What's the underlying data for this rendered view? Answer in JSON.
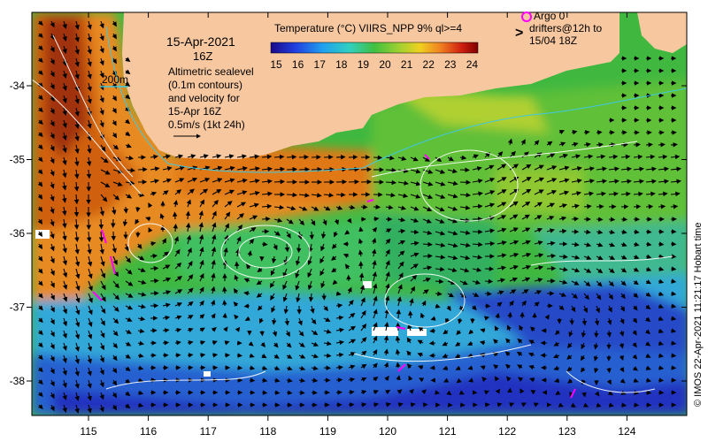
{
  "title": {
    "date": "15-Apr-2021",
    "time": "16Z",
    "description_lines": [
      "Altimetric sealevel",
      "(0.1m contours)",
      "and velocity for",
      "15-Apr 16Z"
    ],
    "velocity_scale": "0.5m/s (1kt 24h)"
  },
  "isobath_label": "200m",
  "colorbar": {
    "title": "Temperature (°C) VIIRS_NPP 9% ql>=4",
    "ticks": [
      "15",
      "16",
      "17",
      "18",
      "19",
      "20",
      "21",
      "22",
      "23",
      "24"
    ],
    "range": [
      14.5,
      24.5
    ]
  },
  "legend": {
    "argo_label": "Argo 0",
    "drifters_label_1": "drifters@12h to",
    "drifters_label_2": "15/04 18Z",
    "argo_color": "#ff00ff",
    "drifter_color": "#ff00ff"
  },
  "axes": {
    "x_ticks": [
      "115",
      "116",
      "117",
      "118",
      "119",
      "120",
      "121",
      "122",
      "123",
      "124"
    ],
    "y_ticks": [
      "-34",
      "-35",
      "-36",
      "-37",
      "-38"
    ]
  },
  "footer": "© IMOS 22-Apr-2021 11:21:17 Hobart time",
  "colors": {
    "land": "#f7c8a0",
    "warm": "#e07a10",
    "mid": "#3cb83c",
    "cool": "#28a0e0",
    "cold": "#2a3cd8",
    "contour": "#ffffff",
    "isobath": "#40c8e0"
  }
}
